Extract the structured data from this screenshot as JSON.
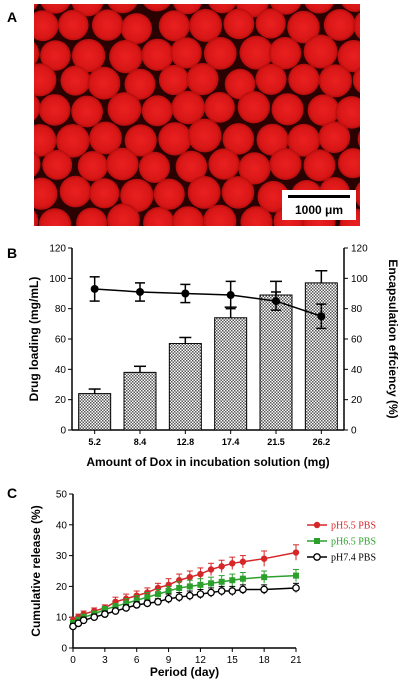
{
  "panels": {
    "a": {
      "letter": "A",
      "scale_bar_label": "1000 μm"
    },
    "b": {
      "letter": "B"
    },
    "c": {
      "letter": "C"
    }
  },
  "colors": {
    "micro_bg": "#2a0202",
    "micro_sphere": "#e01818",
    "hatch": "#555555",
    "red_series": "#d62728",
    "green_series": "#2ca02c",
    "black_series": "#000000"
  },
  "chart_data": [
    {
      "type": "bar",
      "panel": "B",
      "categories": [
        "5.2",
        "8.4",
        "12.8",
        "17.4",
        "21.5",
        "26.2"
      ],
      "values": [
        24,
        38,
        57,
        74,
        89,
        97
      ],
      "errors": [
        3,
        4,
        4,
        7,
        9,
        8
      ],
      "xlabel": "Amount of Dox in incubation solution (mg)",
      "ylabel": "Drug loading (mg/mL)",
      "ylim": [
        0,
        120
      ],
      "yticks": [
        0,
        20,
        40,
        60,
        80,
        100,
        120
      ],
      "y2label": "Encapsulation effciency (%)",
      "y2lim": [
        0,
        120
      ],
      "y2ticks": [
        0,
        20,
        40,
        60,
        80,
        100,
        120
      ],
      "line_series": {
        "axis": "right",
        "values": [
          93,
          91,
          90,
          89,
          85,
          75
        ],
        "errors": [
          8,
          6,
          6,
          9,
          6,
          8
        ]
      }
    },
    {
      "type": "line",
      "panel": "C",
      "xlabel": "Period (day)",
      "ylabel": "Cumulative release (%)",
      "xlim": [
        0,
        21
      ],
      "ylim": [
        0,
        50
      ],
      "xticks": [
        0,
        3,
        6,
        9,
        12,
        15,
        18,
        21
      ],
      "yticks": [
        0,
        10,
        20,
        30,
        40,
        50
      ],
      "legend": "right",
      "series": [
        {
          "name": "pH5.5 PBS",
          "color": "#d62728",
          "marker": "circle-filled",
          "x": [
            0,
            0.5,
            1,
            2,
            3,
            4,
            5,
            6,
            7,
            8,
            9,
            10,
            11,
            12,
            13,
            14,
            15,
            16,
            18,
            21
          ],
          "y": [
            9,
            10,
            11,
            12,
            13,
            15,
            16,
            17,
            18,
            19.5,
            20.5,
            22,
            23,
            24,
            25.5,
            26.5,
            27.5,
            28,
            29,
            31
          ],
          "err": [
            1,
            1,
            1,
            1,
            1,
            1.5,
            1.5,
            1.5,
            1.5,
            1.5,
            2,
            2,
            2,
            2,
            2,
            2,
            2,
            2,
            2.5,
            2.5
          ]
        },
        {
          "name": "pH6.5 PBS",
          "color": "#2ca02c",
          "marker": "square-filled",
          "x": [
            0,
            0.5,
            1,
            2,
            3,
            4,
            5,
            6,
            7,
            8,
            9,
            10,
            11,
            12,
            13,
            14,
            15,
            16,
            18,
            21
          ],
          "y": [
            8,
            9,
            10,
            11,
            12.5,
            13.5,
            14.5,
            15.5,
            16.5,
            17.5,
            18.5,
            19.5,
            20,
            20.5,
            21,
            21.5,
            22,
            22.5,
            23,
            23.5
          ],
          "err": [
            1,
            1,
            1,
            1,
            1,
            1,
            1.5,
            1.5,
            1.5,
            1.5,
            1.5,
            2,
            2,
            2,
            2,
            2,
            2,
            2,
            2,
            2
          ]
        },
        {
          "name": "pH7.4 PBS",
          "color": "#000000",
          "marker": "circle-open",
          "x": [
            0,
            0.5,
            1,
            2,
            3,
            4,
            5,
            6,
            7,
            8,
            9,
            10,
            11,
            12,
            13,
            14,
            15,
            16,
            18,
            21
          ],
          "y": [
            7,
            8,
            9,
            10,
            11,
            12,
            13,
            14,
            14.5,
            15,
            16,
            16.5,
            17,
            17.5,
            18,
            18.5,
            18.5,
            19,
            19,
            19.5
          ],
          "err": [
            1,
            1,
            1,
            1,
            1,
            1,
            1,
            1,
            1,
            1,
            1.5,
            1.5,
            1.5,
            1.5,
            1.5,
            1.5,
            1.5,
            1.5,
            1.5,
            1.5
          ]
        }
      ]
    }
  ]
}
